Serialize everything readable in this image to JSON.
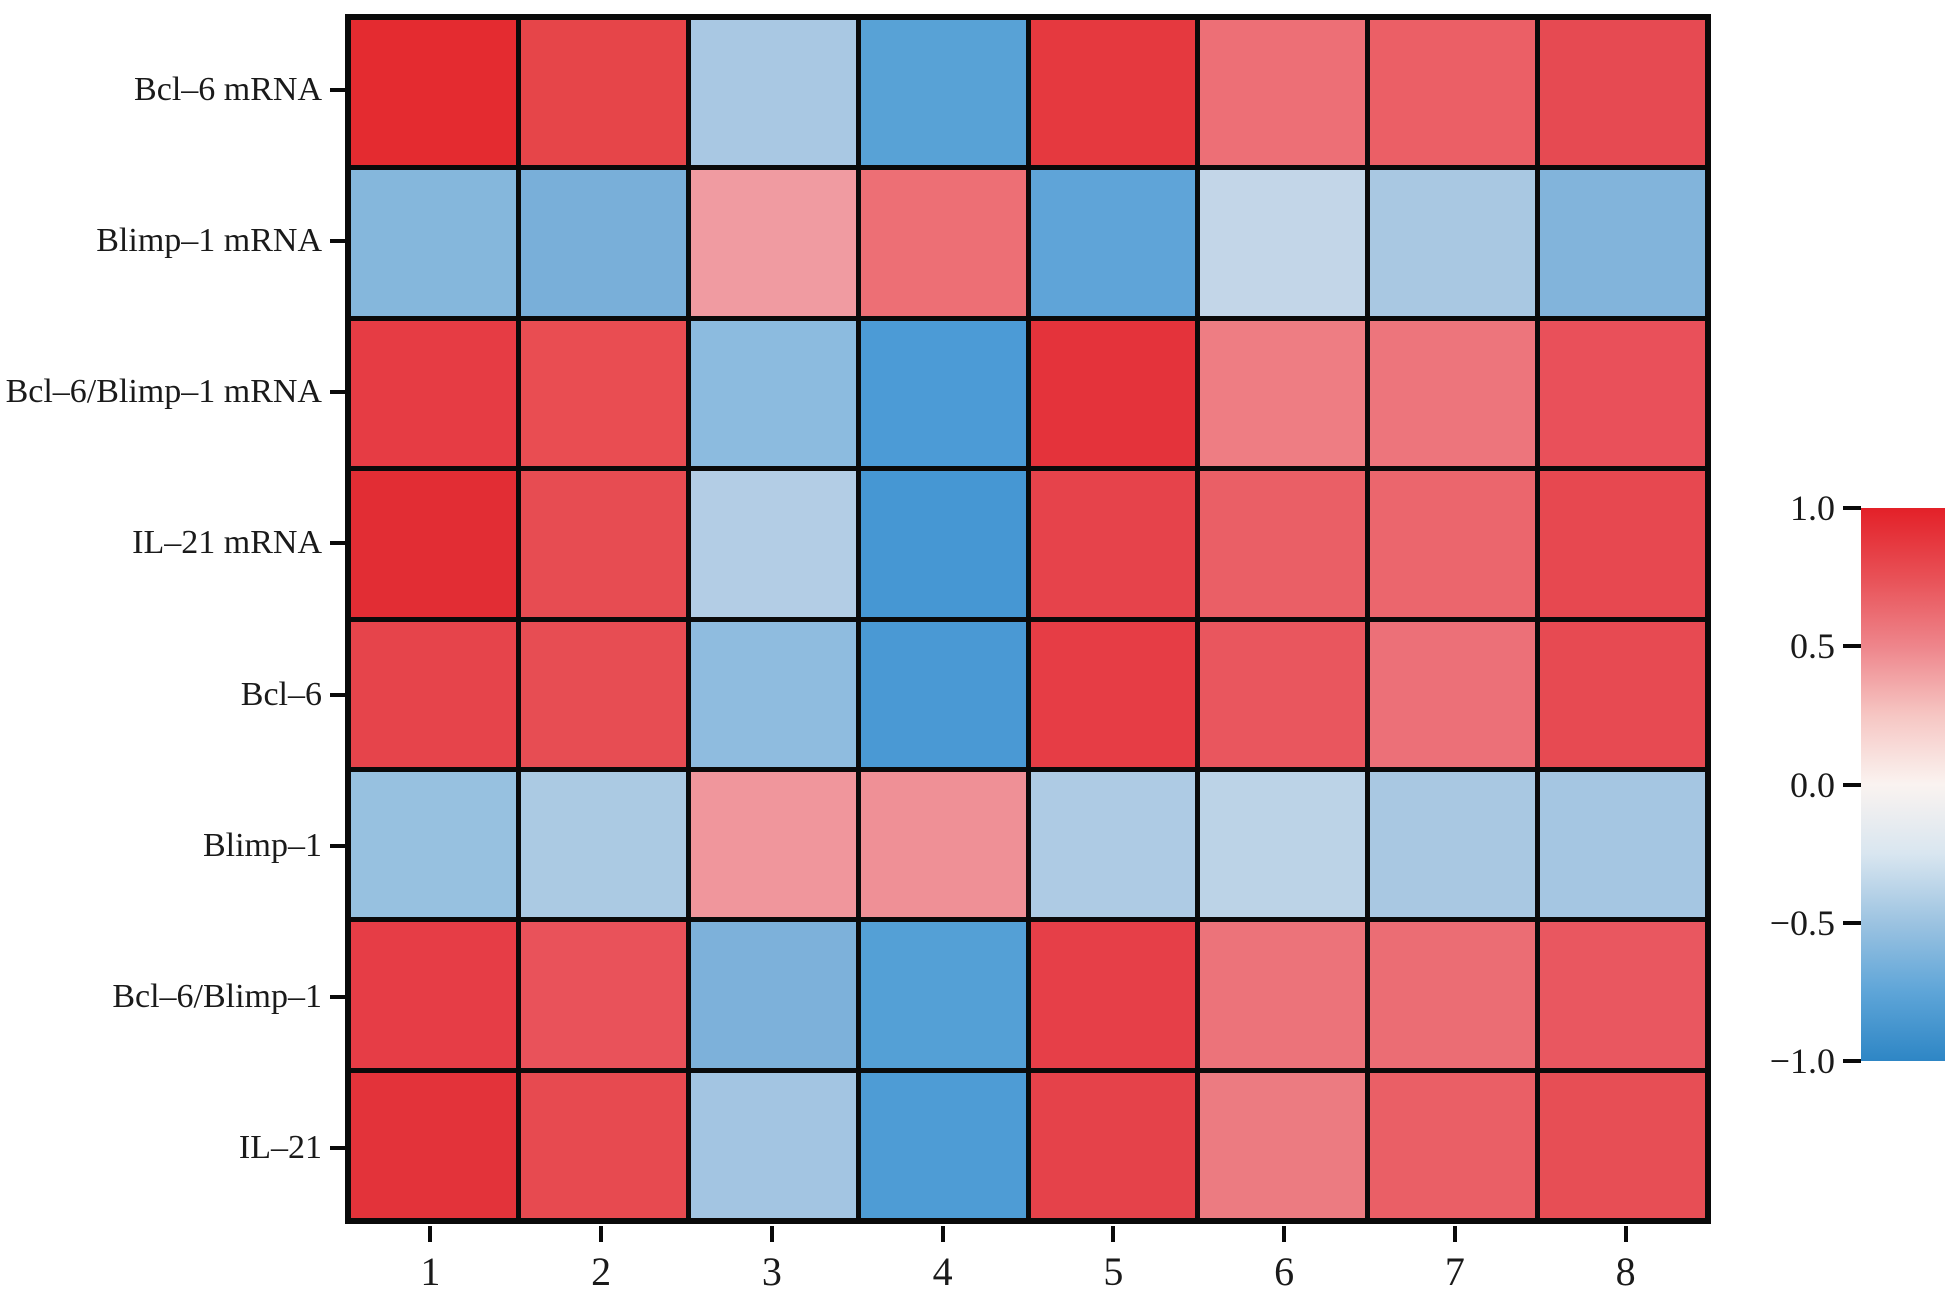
{
  "figure": {
    "background": "#ffffff",
    "text_color": "#1a1a1a",
    "grid_line_color": "#0a0a0a"
  },
  "chart_data": {
    "type": "heatmap",
    "title": "",
    "xlabel": "",
    "ylabel": "",
    "rows": [
      "Bcl–6 mRNA",
      "Blimp–1 mRNA",
      "Bcl–6/Blimp–1 mRNA",
      "IL–21 mRNA",
      "Bcl–6",
      "Blimp–1",
      "Bcl–6/Blimp–1",
      "IL–21"
    ],
    "columns": [
      "1",
      "2",
      "3",
      "4",
      "5",
      "6",
      "7",
      "8"
    ],
    "values": [
      [
        0.9,
        0.8,
        -0.35,
        -0.6,
        0.85,
        0.5,
        0.6,
        0.75
      ],
      [
        -0.45,
        -0.5,
        0.4,
        0.55,
        -0.6,
        -0.2,
        -0.35,
        -0.45
      ],
      [
        0.85,
        0.7,
        -0.4,
        -0.7,
        0.9,
        0.45,
        0.5,
        0.7
      ],
      [
        0.9,
        0.7,
        -0.3,
        -0.75,
        0.75,
        0.6,
        0.6,
        0.75
      ],
      [
        0.8,
        0.7,
        -0.4,
        -0.7,
        0.8,
        0.65,
        0.5,
        0.75
      ],
      [
        -0.4,
        -0.3,
        0.4,
        0.4,
        -0.3,
        -0.25,
        -0.35,
        -0.35
      ],
      [
        0.8,
        0.7,
        -0.5,
        -0.65,
        0.8,
        0.5,
        0.55,
        0.65
      ],
      [
        0.85,
        0.75,
        -0.35,
        -0.65,
        0.8,
        0.45,
        0.6,
        0.7
      ]
    ],
    "cell_colors": [
      [
        "#e42b30",
        "#e64549",
        "#a9c8e3",
        "#58a2d6",
        "#e5393f",
        "#ed6f76",
        "#eb5f66",
        "#e64a52"
      ],
      [
        "#85b7dc",
        "#79afd9",
        "#f09ba1",
        "#ed6f75",
        "#5fa4d8",
        "#c3d6e8",
        "#a9c8e2",
        "#82b4db"
      ],
      [
        "#e63c44",
        "#e94d52",
        "#8cbbdf",
        "#4c9bd6",
        "#e4333b",
        "#ee7d83",
        "#ed757c",
        "#e9505a"
      ],
      [
        "#e22d34",
        "#e74c52",
        "#b3cde5",
        "#4697d3",
        "#e6434b",
        "#ea5f66",
        "#eb666d",
        "#e74850"
      ],
      [
        "#e6444b",
        "#e74d53",
        "#8fbcdf",
        "#4a99d4",
        "#e63d45",
        "#e9565e",
        "#ec7078",
        "#e74a52"
      ],
      [
        "#97c1e0",
        "#abcae3",
        "#f0969c",
        "#ef9096",
        "#aecbe4",
        "#bcd3e7",
        "#a9c8e2",
        "#a5c6e2"
      ],
      [
        "#e63d46",
        "#e9525a",
        "#7db1da",
        "#54a0d6",
        "#e63f48",
        "#ec737a",
        "#eb6d74",
        "#e95760"
      ],
      [
        "#e3333a",
        "#e74a50",
        "#a3c5e2",
        "#4e9cd5",
        "#e5424a",
        "#ec7b81",
        "#ea5f66",
        "#e74e55"
      ]
    ],
    "colorbar": {
      "tick_labels": [
        "1.0",
        "0.5",
        "0.0",
        "−0.5",
        "−1.0"
      ],
      "tick_values": [
        1.0,
        0.5,
        0.0,
        -0.5,
        -1.0
      ],
      "min": -1.0,
      "max": 1.0,
      "orientation": "vertical",
      "position": "right",
      "gradient_stops": [
        "#e32028",
        "#e85056",
        "#ee858b",
        "#f6c6c3",
        "#faf3f0",
        "#d9e6f0",
        "#9cc3e1",
        "#5ea5d8",
        "#2e86c5"
      ]
    },
    "colormap": "red-white-blue diverging",
    "grid_on": true,
    "legend_position": "none"
  }
}
